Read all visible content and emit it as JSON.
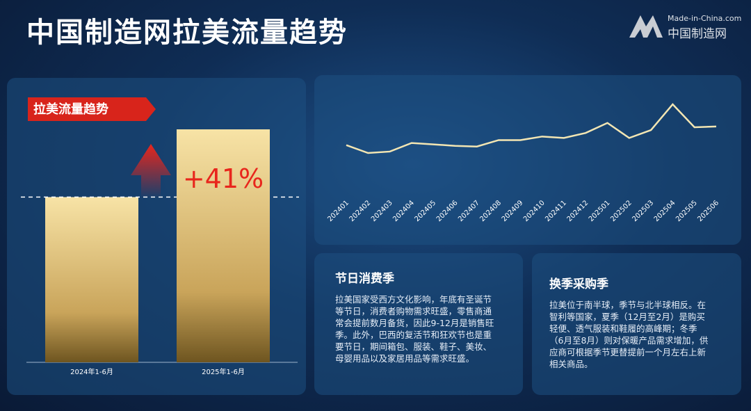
{
  "header": {
    "title": "中国制造网拉美流量趋势",
    "logo_en": "Made-in-China.com",
    "logo_cn": "中国制造网"
  },
  "chart_data": [
    {
      "type": "bar",
      "title": "拉美流量趋势",
      "categories": [
        "2024年1-6月",
        "2025年1-6月"
      ],
      "values": [
        100,
        141
      ],
      "annotation": "+41%",
      "color": "#e6c77d"
    },
    {
      "type": "line",
      "categories": [
        "202401",
        "202402",
        "202403",
        "202404",
        "202405",
        "202406",
        "202407",
        "202408",
        "202409",
        "202410",
        "202411",
        "202412",
        "202501",
        "202502",
        "202503",
        "202504",
        "202505",
        "202506"
      ],
      "values": [
        22,
        11,
        13,
        25,
        23,
        21,
        20,
        29,
        29,
        34,
        32,
        39,
        53,
        32,
        43,
        79,
        47,
        48
      ],
      "color": "#f3e6b3"
    }
  ],
  "cards": [
    {
      "title": "节日消费季",
      "text": "拉美国家受西方文化影响，年底有圣诞节等节日，消费者购物需求旺盛，零售商通常会提前数月备货，因此9-12月是销售旺季。此外，巴西的复活节和狂欢节也是重要节日，期间箱包、服装、鞋子、美妆、母婴用品以及家居用品等需求旺盛。"
    },
    {
      "title": "换季采购季",
      "text": "拉美位于南半球，季节与北半球相反。在智利等国家，夏季（12月至2月）是购买轻便、透气服装和鞋履的高峰期；冬季（6月至8月）则对保暖产品需求增加，供应商可根据季节更替提前一个月左右上新相关商品。"
    }
  ]
}
